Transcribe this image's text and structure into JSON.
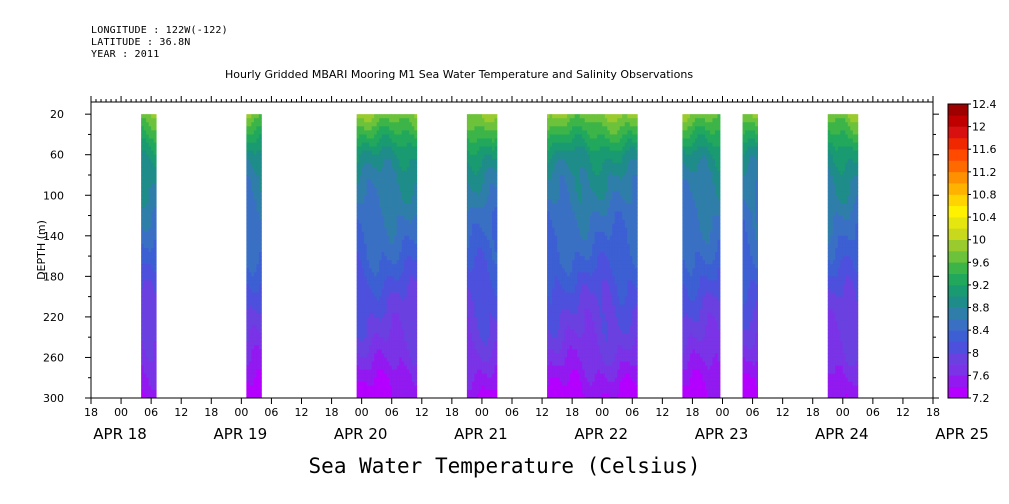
{
  "header": {
    "longitude": "LONGITUDE : 122W(-122)",
    "latitude": "LATITUDE : 36.8N",
    "year": "YEAR : 2011"
  },
  "chart_data": {
    "type": "heatmap",
    "title": "Hourly Gridded MBARI Mooring M1 Sea Water Temperature and Salinity Observations",
    "subtitle": "Sea Water Temperature (Celsius)",
    "ylabel": "DEPTH (m)",
    "y_ticks": [
      20,
      60,
      100,
      140,
      180,
      220,
      260,
      300
    ],
    "ylim": [
      300,
      8
    ],
    "x_hour_ticks": [
      "18",
      "00",
      "06",
      "12",
      "18",
      "00",
      "06",
      "12",
      "18",
      "00",
      "06",
      "12",
      "18",
      "00",
      "06",
      "12",
      "18",
      "00",
      "06",
      "12",
      "18",
      "00",
      "06",
      "12",
      "18",
      "00",
      "06",
      "12",
      "18"
    ],
    "x_day_labels": [
      "APR 18",
      "APR 19",
      "APR 20",
      "APR 21",
      "APR 22",
      "APR 23",
      "APR 24",
      "APR 25"
    ],
    "x_range_hours": [
      0,
      168
    ],
    "data_segments_hours": [
      [
        10,
        13
      ],
      [
        31,
        34
      ],
      [
        53,
        65
      ],
      [
        75,
        81
      ],
      [
        91,
        109
      ],
      [
        118,
        125.5
      ],
      [
        130,
        133
      ],
      [
        147,
        153
      ]
    ],
    "colorbar": {
      "levels": [
        7.2,
        7.4,
        7.6,
        7.8,
        8,
        8.2,
        8.4,
        8.6,
        8.8,
        9,
        9.2,
        9.4,
        9.6,
        9.8,
        10,
        10.2,
        10.4,
        10.6,
        10.8,
        11,
        11.2,
        11.4,
        11.6,
        11.8,
        12,
        12.2,
        12.4
      ],
      "labels": [
        "7.2",
        "7.6",
        "8",
        "8.4",
        "8.8",
        "9.2",
        "9.6",
        "10",
        "10.4",
        "10.8",
        "11.2",
        "11.6",
        "12",
        "12.4"
      ],
      "colors": [
        "#b300ff",
        "#9219f0",
        "#7a33e6",
        "#6a40e0",
        "#4d50dc",
        "#3c5fd3",
        "#3a70c4",
        "#2f7eaa",
        "#1e8c88",
        "#1a9a70",
        "#22a85c",
        "#3cb448",
        "#6cc23a",
        "#9acb2e",
        "#c8d81c",
        "#e5e510",
        "#fff200",
        "#ffd400",
        "#ffb300",
        "#ff9000",
        "#ff6a00",
        "#ff4a00",
        "#f02800",
        "#d81010",
        "#c00000",
        "#9e0000"
      ]
    },
    "depth_profile_values": {
      "depths": [
        20,
        40,
        60,
        80,
        100,
        120,
        140,
        160,
        180,
        200,
        220,
        240,
        260,
        280,
        300
      ],
      "temperature": [
        9.8,
        9.4,
        9.0,
        8.8,
        8.7,
        8.55,
        8.45,
        8.35,
        8.2,
        8.05,
        7.95,
        7.85,
        7.7,
        7.5,
        7.35
      ]
    },
    "grid": false,
    "legend": "right colorbar"
  }
}
